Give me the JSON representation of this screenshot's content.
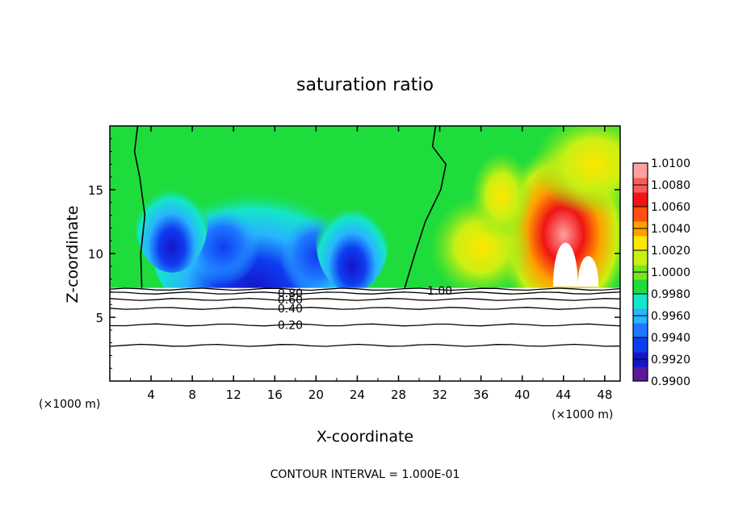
{
  "chart_data": {
    "type": "heatmap",
    "title": "saturation ratio",
    "xlabel": "X-coordinate",
    "ylabel": "Z-coordinate",
    "x_unit_left": "(×1000 m)",
    "x_unit_right": "(×1000 m)",
    "xlim": [
      0,
      49.5
    ],
    "ylim": [
      0,
      20
    ],
    "x_ticks": [
      4,
      8,
      12,
      16,
      20,
      24,
      28,
      32,
      36,
      40,
      44,
      48
    ],
    "x_tick_labels": [
      "4",
      "8",
      "12",
      "16",
      "20",
      "24",
      "28",
      "32",
      "36",
      "40",
      "44",
      "48"
    ],
    "y_ticks": [
      5,
      10,
      15
    ],
    "y_tick_labels": [
      "5",
      "10",
      "15"
    ],
    "colorbar": {
      "levels": [
        0.99,
        0.992,
        0.994,
        0.996,
        0.998,
        1.0,
        1.002,
        1.004,
        1.006,
        1.008,
        1.01
      ],
      "labels": [
        "0.9900",
        "0.9920",
        "0.9940",
        "0.9960",
        "0.9980",
        "1.0000",
        "1.0020",
        "1.0040",
        "1.0060",
        "1.0080",
        "1.0100"
      ],
      "colors": [
        "#5a189a",
        "#1414c8",
        "#0f3cf0",
        "#1e78ff",
        "#28b4ff",
        "#14e6c8",
        "#1edc3c",
        "#78e61e",
        "#c8f014",
        "#ffe600",
        "#ffa000",
        "#ff5014",
        "#f01414",
        "#ff5a5a",
        "#ffa0a0"
      ]
    },
    "contour_labels": [
      {
        "text": "0.80",
        "x": 17.5,
        "z": 6.9
      },
      {
        "text": "0.60",
        "x": 17.5,
        "z": 6.4
      },
      {
        "text": "0.40",
        "x": 17.5,
        "z": 5.7
      },
      {
        "text": "0.20",
        "x": 17.5,
        "z": 4.4
      },
      {
        "text": "1.00",
        "x": 32,
        "z": 7.1
      }
    ],
    "contour_interval_text": "CONTOUR INTERVAL = 1.000E-01"
  }
}
